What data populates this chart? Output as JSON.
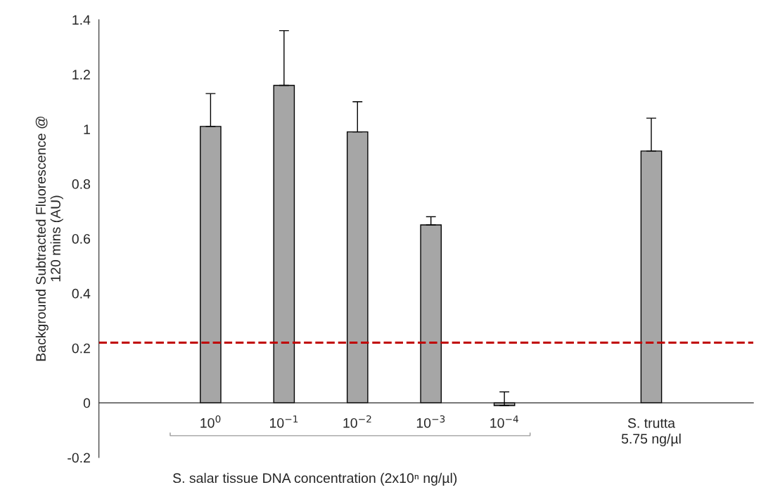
{
  "chart_data": {
    "type": "bar",
    "ylabel": "Background Subtracted Fluorescence @\n120 mins (AU)",
    "xlabel": "S. salar tissue DNA concentration (2x10ⁿ ng/µl)",
    "categories": [
      "10$^{0}$",
      "10$^{−1}$",
      "10$^{−2}$",
      "10$^{−3}$",
      "10$^{−4}$",
      null,
      "S. trutta\n5.75 ng/µl"
    ],
    "values": [
      1.01,
      1.16,
      0.99,
      0.65,
      -0.01,
      null,
      0.92
    ],
    "errors": [
      [
        1.01,
        1.13
      ],
      [
        1.16,
        1.36
      ],
      [
        0.99,
        1.1
      ],
      [
        0.65,
        0.68
      ],
      [
        -0.01,
        0.04
      ],
      null,
      [
        0.92,
        1.04
      ]
    ],
    "color": "#a6a6a6",
    "ylim": [
      -0.2,
      1.4
    ],
    "yticks": [
      -0.2,
      0,
      0.2,
      0.4,
      0.6,
      0.8,
      1,
      1.2,
      1.4
    ],
    "ref_lines": [
      {
        "axis": "y",
        "value": 0.22,
        "color": "#c00000",
        "line_style": "dashed"
      }
    ],
    "legend": false
  }
}
